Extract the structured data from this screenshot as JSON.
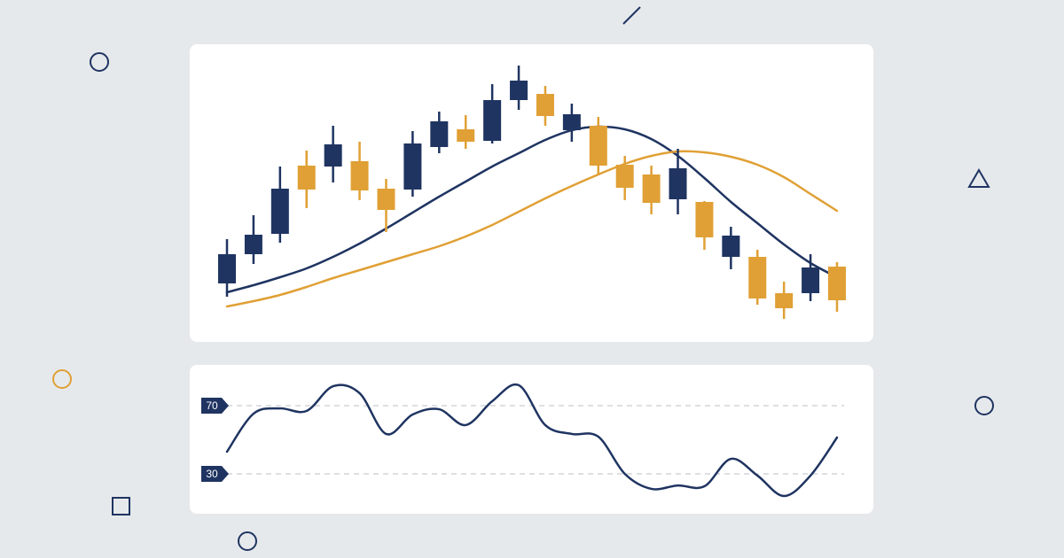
{
  "chart_data": [
    {
      "type": "candlestick",
      "up_color": "#1f3461",
      "down_color": "#e0a035",
      "open": [
        16.5,
        24.75,
        30.5,
        49.75,
        49.5,
        51,
        43.25,
        43,
        55,
        60,
        56.75,
        68.25,
        70,
        59.75,
        61,
        50,
        47.25,
        40.25,
        39.5,
        24,
        24,
        13.75,
        13.75,
        21.25
      ],
      "high": [
        29,
        35.75,
        49.5,
        54,
        61,
        56.5,
        46,
        59.5,
        65,
        64,
        72.75,
        78,
        72.25,
        67.25,
        63.5,
        52.5,
        49.75,
        54.5,
        39.75,
        32.5,
        26,
        17,
        24.75,
        22.5
      ],
      "low": [
        12.75,
        22,
        28,
        37.75,
        45,
        40,
        31,
        41,
        53.25,
        54.5,
        56,
        65.5,
        61,
        56.5,
        47.5,
        40,
        36,
        36,
        26,
        20.5,
        10.5,
        6.5,
        11.5,
        8.5
      ],
      "close": [
        24.75,
        30.25,
        43.25,
        43,
        55.75,
        42.75,
        37.25,
        56,
        62.25,
        56.5,
        68.25,
        73.75,
        63.75,
        64.25,
        49.75,
        43.5,
        39.25,
        49,
        29.5,
        30,
        12.25,
        9.5,
        21,
        11.75
      ],
      "lines": [
        {
          "color": "#1f3461",
          "values": [
            14,
            16,
            18.25,
            20.75,
            24,
            27.75,
            32,
            36.5,
            41,
            45.25,
            49.5,
            53.25,
            57,
            59.75,
            60.75,
            60,
            57.25,
            52.5,
            46.25,
            39.5,
            33.5,
            27.5,
            22.25,
            18.25
          ]
        },
        {
          "color": "#e0a035",
          "values": [
            10,
            11.5,
            13.25,
            15.5,
            18,
            20.25,
            22.5,
            24.75,
            27,
            29.75,
            33,
            36.75,
            40.5,
            44,
            47.25,
            50.25,
            52.5,
            53.75,
            53.5,
            52.25,
            50,
            46.5,
            41.75,
            37
          ]
        }
      ],
      "ylim": [
        0,
        84
      ]
    },
    {
      "type": "line",
      "color": "#1f3461",
      "values": [
        43,
        65.3,
        68.4,
        66.9,
        81.4,
        77.3,
        53.4,
        64.8,
        67.9,
        58.6,
        72.6,
        82,
        58.6,
        53.4,
        51.8,
        30,
        21.2,
        23.2,
        22.7,
        38.8,
        29,
        17,
        29,
        51.3
      ],
      "ylim": [
        0,
        100
      ],
      "yticks": [
        30,
        70
      ],
      "grid": true
    }
  ]
}
